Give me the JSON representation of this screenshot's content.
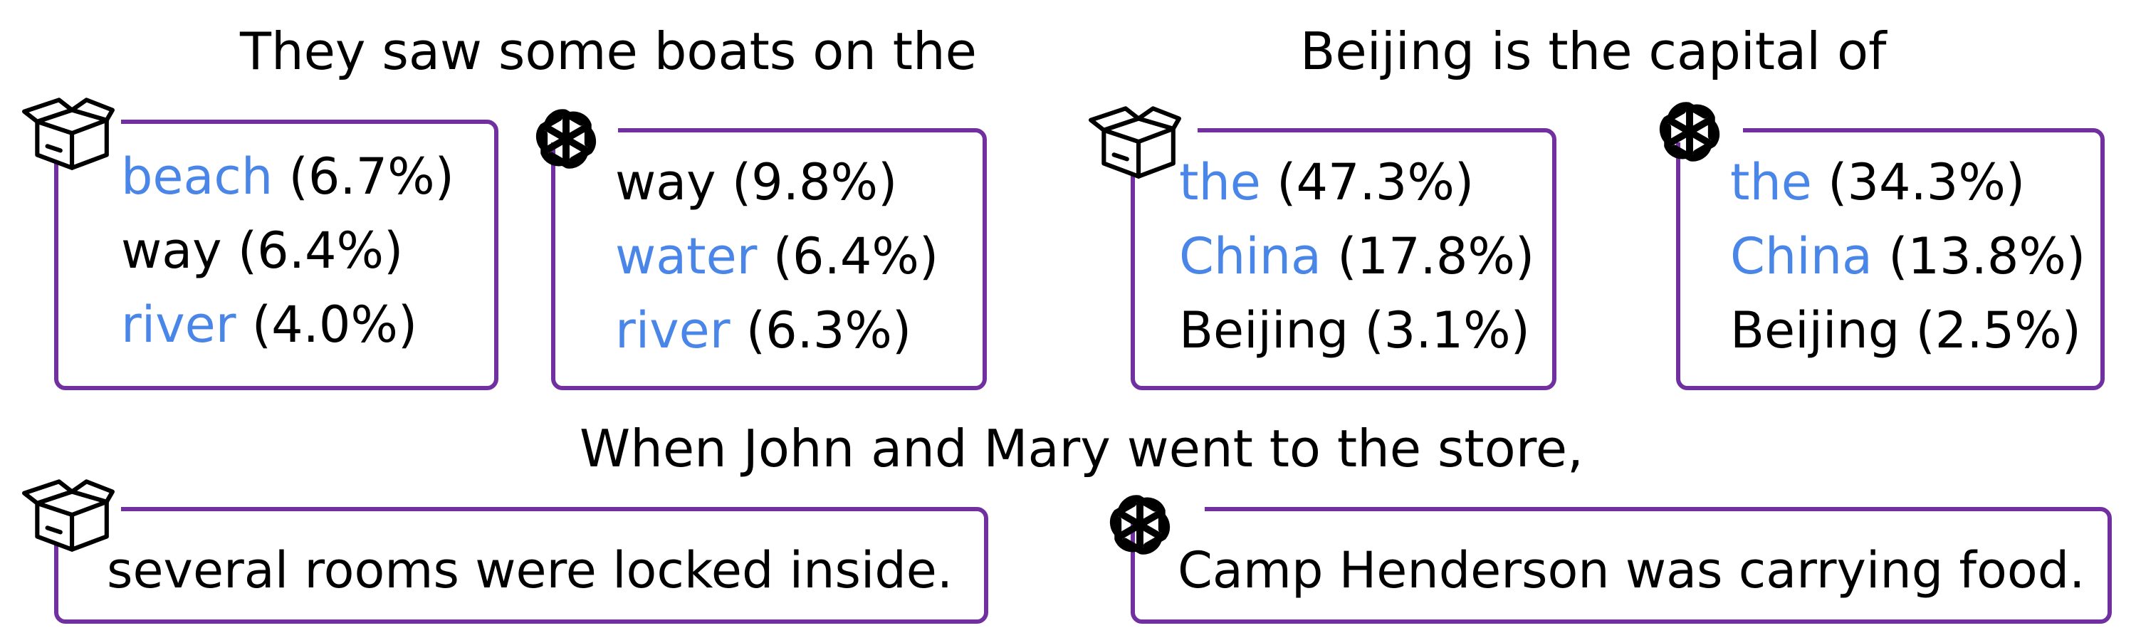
{
  "examples": [
    {
      "prompt": "They saw some boats on the",
      "small_model": [
        {
          "token": "beach",
          "prob": "(6.7%)",
          "highlight": true
        },
        {
          "token": "way",
          "prob": "(6.4%)",
          "highlight": false
        },
        {
          "token": "river",
          "prob": "(4.0%)",
          "highlight": true
        }
      ],
      "gpt_model": [
        {
          "token": "way",
          "prob": "(9.8%)",
          "highlight": false
        },
        {
          "token": "water",
          "prob": "(6.4%)",
          "highlight": true
        },
        {
          "token": "river",
          "prob": "(6.3%)",
          "highlight": true
        }
      ]
    },
    {
      "prompt": "Beijing is the capital of",
      "small_model": [
        {
          "token": "the",
          "prob": "(47.3%)",
          "highlight": true
        },
        {
          "token": "China",
          "prob": "(17.8%)",
          "highlight": true
        },
        {
          "token": "Beijing",
          "prob": "(3.1%)",
          "highlight": false
        }
      ],
      "gpt_model": [
        {
          "token": "the",
          "prob": "(34.3%)",
          "highlight": true
        },
        {
          "token": "China",
          "prob": "(13.8%)",
          "highlight": true
        },
        {
          "token": "Beijing",
          "prob": "(2.5%)",
          "highlight": false
        }
      ]
    },
    {
      "prompt": "When John and Mary went to the store,",
      "small_model_text": "several rooms were locked inside.",
      "gpt_model_text": "Camp Henderson was carrying food."
    }
  ],
  "icons": {
    "small_model": "open-box-icon",
    "gpt_model": "openai-logo-icon"
  },
  "colors": {
    "highlight": "#4a86e8",
    "border": "#7030a0",
    "text": "#000000"
  }
}
